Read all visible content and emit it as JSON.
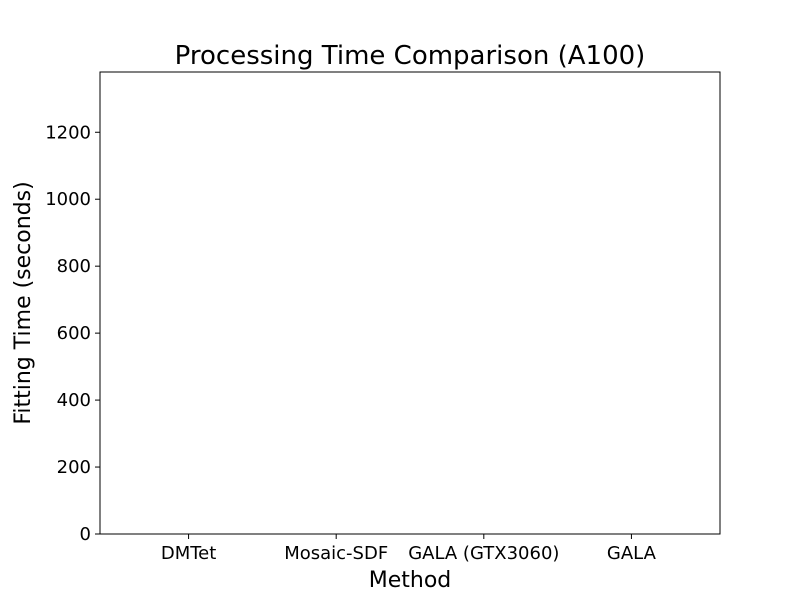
{
  "chart_data": {
    "type": "bar",
    "title": "Processing Time Comparison (A100)",
    "xlabel": "Method",
    "ylabel": "Fitting Time (seconds)",
    "categories": [
      "DMTet",
      "Mosaic-SDF",
      "GALA (GTX3060)",
      "GALA"
    ],
    "values": [
      null,
      null,
      null,
      null
    ],
    "ylim": [
      0,
      1380
    ],
    "yticks": [
      0,
      200,
      400,
      600,
      800,
      1000,
      1200
    ],
    "grid": false,
    "legend": "none"
  }
}
